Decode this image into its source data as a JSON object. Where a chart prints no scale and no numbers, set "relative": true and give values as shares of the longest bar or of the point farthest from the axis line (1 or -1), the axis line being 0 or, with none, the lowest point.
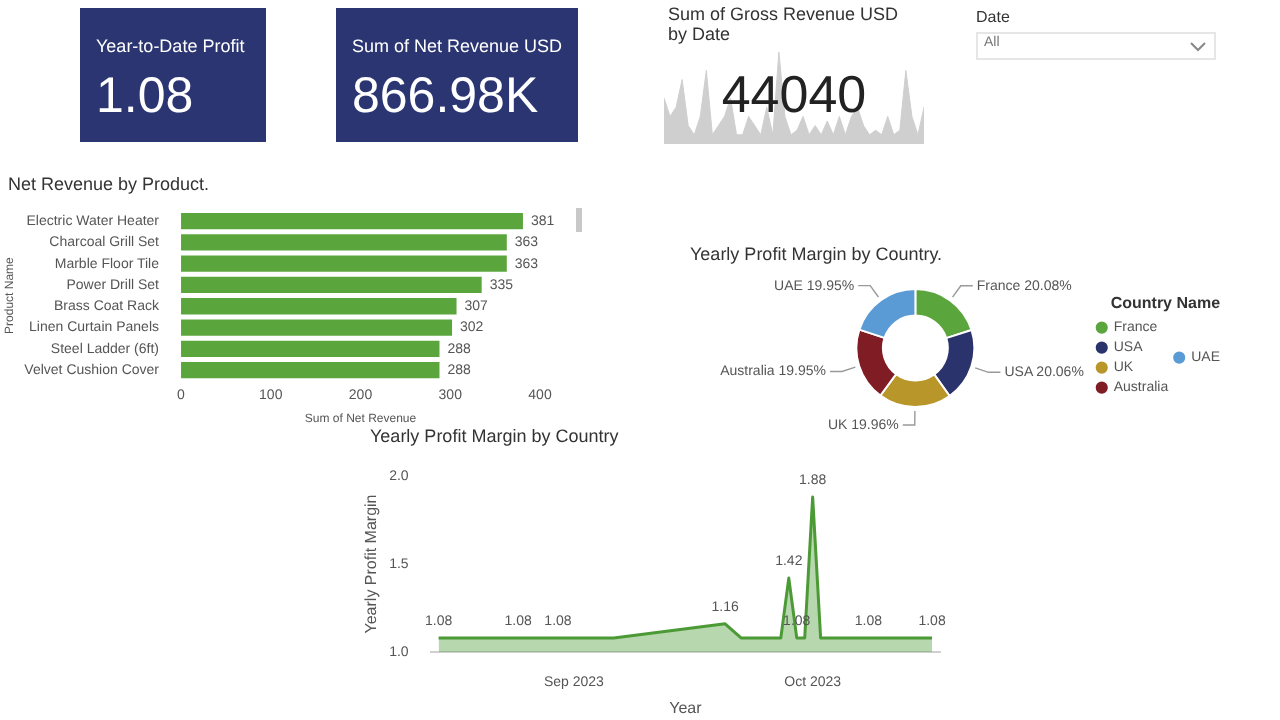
{
  "chart_data": [
    {
      "type": "other",
      "title": "Year-to-Date Profit",
      "annotations": [
        "1.08"
      ],
      "color": "#2b3572"
    },
    {
      "type": "other",
      "title": "Sum of Net Revenue USD",
      "annotations": [
        "866.98K"
      ],
      "color": "#2b3572"
    },
    {
      "type": "area",
      "title": "Sum of Gross Revenue USD by Date",
      "relative": true,
      "color": "#cfcfcf",
      "annotations": [
        "44040"
      ],
      "categories": [
        null,
        null,
        null,
        null,
        null,
        null,
        null,
        null,
        null,
        null,
        null,
        null,
        null,
        null,
        null,
        null,
        null,
        null,
        null,
        null,
        null,
        null,
        null,
        null,
        null,
        null,
        null,
        null,
        null,
        null,
        null,
        null,
        null,
        null,
        null,
        null,
        null,
        null,
        null,
        null,
        null,
        null,
        null,
        null
      ],
      "values": [
        0.5,
        0.3,
        0.4,
        0.7,
        0.2,
        0.1,
        0.3,
        0.8,
        0.1,
        0.2,
        0.3,
        0.5,
        0.1,
        0.1,
        0.3,
        0.2,
        0.1,
        0.4,
        0.1,
        1.0,
        0.3,
        0.1,
        0.15,
        0.3,
        0.1,
        0.2,
        0.1,
        0.25,
        0.1,
        0.3,
        0.1,
        0.3,
        0.4,
        0.2,
        0.1,
        0.15,
        0.1,
        0.3,
        0.1,
        0.15,
        0.8,
        0.3,
        0.1,
        0.4
      ]
    },
    {
      "type": "other",
      "title": "Date",
      "annotations": [
        "All"
      ]
    },
    {
      "type": "bar",
      "title": "Net Revenue by Product.",
      "orientation": "horizontal",
      "color": "#5aa63c",
      "data_labels": true,
      "categories": [
        "Electric Water Heater",
        "Charcoal Grill Set",
        "Marble Floor Tile",
        "Power Drill Set",
        "Brass Coat Rack",
        "Linen Curtain Panels",
        "Steel Ladder (6ft)",
        "Velvet Cushion Cover"
      ],
      "values": [
        381,
        363,
        363,
        335,
        307,
        302,
        288,
        288
      ],
      "xlim": [
        0,
        400
      ],
      "xticks": [
        0,
        100,
        200,
        300,
        400
      ],
      "xlabel": "Sum of Net Revenue",
      "ylabel": "Product Name"
    },
    {
      "type": "donut",
      "title": "Yearly Profit Margin by Country.",
      "legend": "right",
      "legend_title": "Country Name",
      "categories": [
        "France",
        "USA",
        "UK",
        "Australia",
        "UAE"
      ],
      "values": [
        20.08,
        20.06,
        19.96,
        19.95,
        19.95
      ],
      "value_labels": [
        "20.08%",
        "20.06%",
        "19.96%",
        "19.95%",
        "19.95%"
      ],
      "colors": [
        "#5aa63c",
        "#2a336b",
        "#b8962a",
        "#7f1c24",
        "#5b9bd5"
      ]
    },
    {
      "type": "area",
      "title": "Yearly Profit Margin by Country",
      "color": "#4c9a35",
      "marker": "none",
      "xlabel": "Year",
      "ylabel": "Yearly Profit Margin",
      "x": [
        "2023-08-15",
        "2023-08-25",
        "2023-08-30",
        "2023-09-06",
        "2023-09-20",
        "2023-09-22",
        "2023-09-27",
        "2023-09-28",
        "2023-09-29",
        "2023-09-30",
        "2023-10-01",
        "2023-10-02",
        "2023-10-08",
        "2023-10-16"
      ],
      "values": [
        1.08,
        1.08,
        1.08,
        1.08,
        1.16,
        1.08,
        1.08,
        1.42,
        1.08,
        1.08,
        1.88,
        1.08,
        1.08,
        1.08
      ],
      "value_labels": [
        "1.08",
        "1.08",
        "1.08",
        null,
        "1.16",
        null,
        null,
        "1.42",
        "1.08",
        null,
        "1.88",
        null,
        "1.08",
        "1.08"
      ],
      "xlim": [
        "2023-08-14",
        "2023-10-17"
      ],
      "xticks": [
        {
          "value": "2023-09-01",
          "label": "Sep 2023"
        },
        {
          "value": "2023-10-01",
          "label": "Oct 2023"
        }
      ],
      "ylim": [
        1,
        2
      ],
      "yticks": [
        {
          "value": 1,
          "label": "1.0"
        },
        {
          "value": 1.5,
          "label": "1.5"
        },
        {
          "value": 2,
          "label": "2.0"
        }
      ]
    }
  ]
}
